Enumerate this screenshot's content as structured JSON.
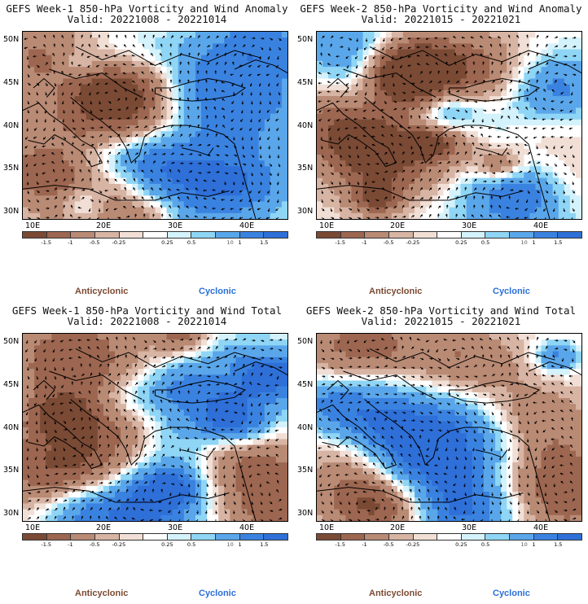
{
  "panels": [
    {
      "title": "GEFS Week-1 850-hPa Vorticity and Wind Anomaly",
      "valid": "Valid: 20221008 - 20221014",
      "variant": 0
    },
    {
      "title": "GEFS Week-2 850-hPa Vorticity and Wind Anomaly",
      "valid": "Valid: 20221015 - 20221021",
      "variant": 1
    },
    {
      "title": "GEFS Week-1 850-hPa Vorticity and Wind Total",
      "valid": "Valid: 20221008 - 20221014",
      "variant": 2
    },
    {
      "title": "GEFS Week-2 850-hPa Vorticity and Wind Total",
      "valid": "Valid: 20221015 - 20221021",
      "variant": 3
    }
  ],
  "lat_labels": [
    "50N",
    "45N",
    "40N",
    "35N",
    "30N"
  ],
  "lon_labels": [
    "10E",
    "20E",
    "30E",
    "40E"
  ],
  "colorbar": {
    "tick_labels": [
      "-1.5",
      "-1",
      "-0.5",
      "-0.25",
      "0.25",
      "0.5",
      "1",
      "1.5"
    ],
    "multiplier": "10",
    "colors": [
      "#7a4a35",
      "#9c6650",
      "#b98a74",
      "#d7b4a3",
      "#f1dfd6",
      "#ffffff",
      "#d4f2fb",
      "#8fd5f5",
      "#5aa6ea",
      "#3a82e0",
      "#2e6fd8"
    ]
  },
  "legend": {
    "anticyclonic": "Anticyclonic",
    "cyclonic": "Cyclonic"
  }
}
